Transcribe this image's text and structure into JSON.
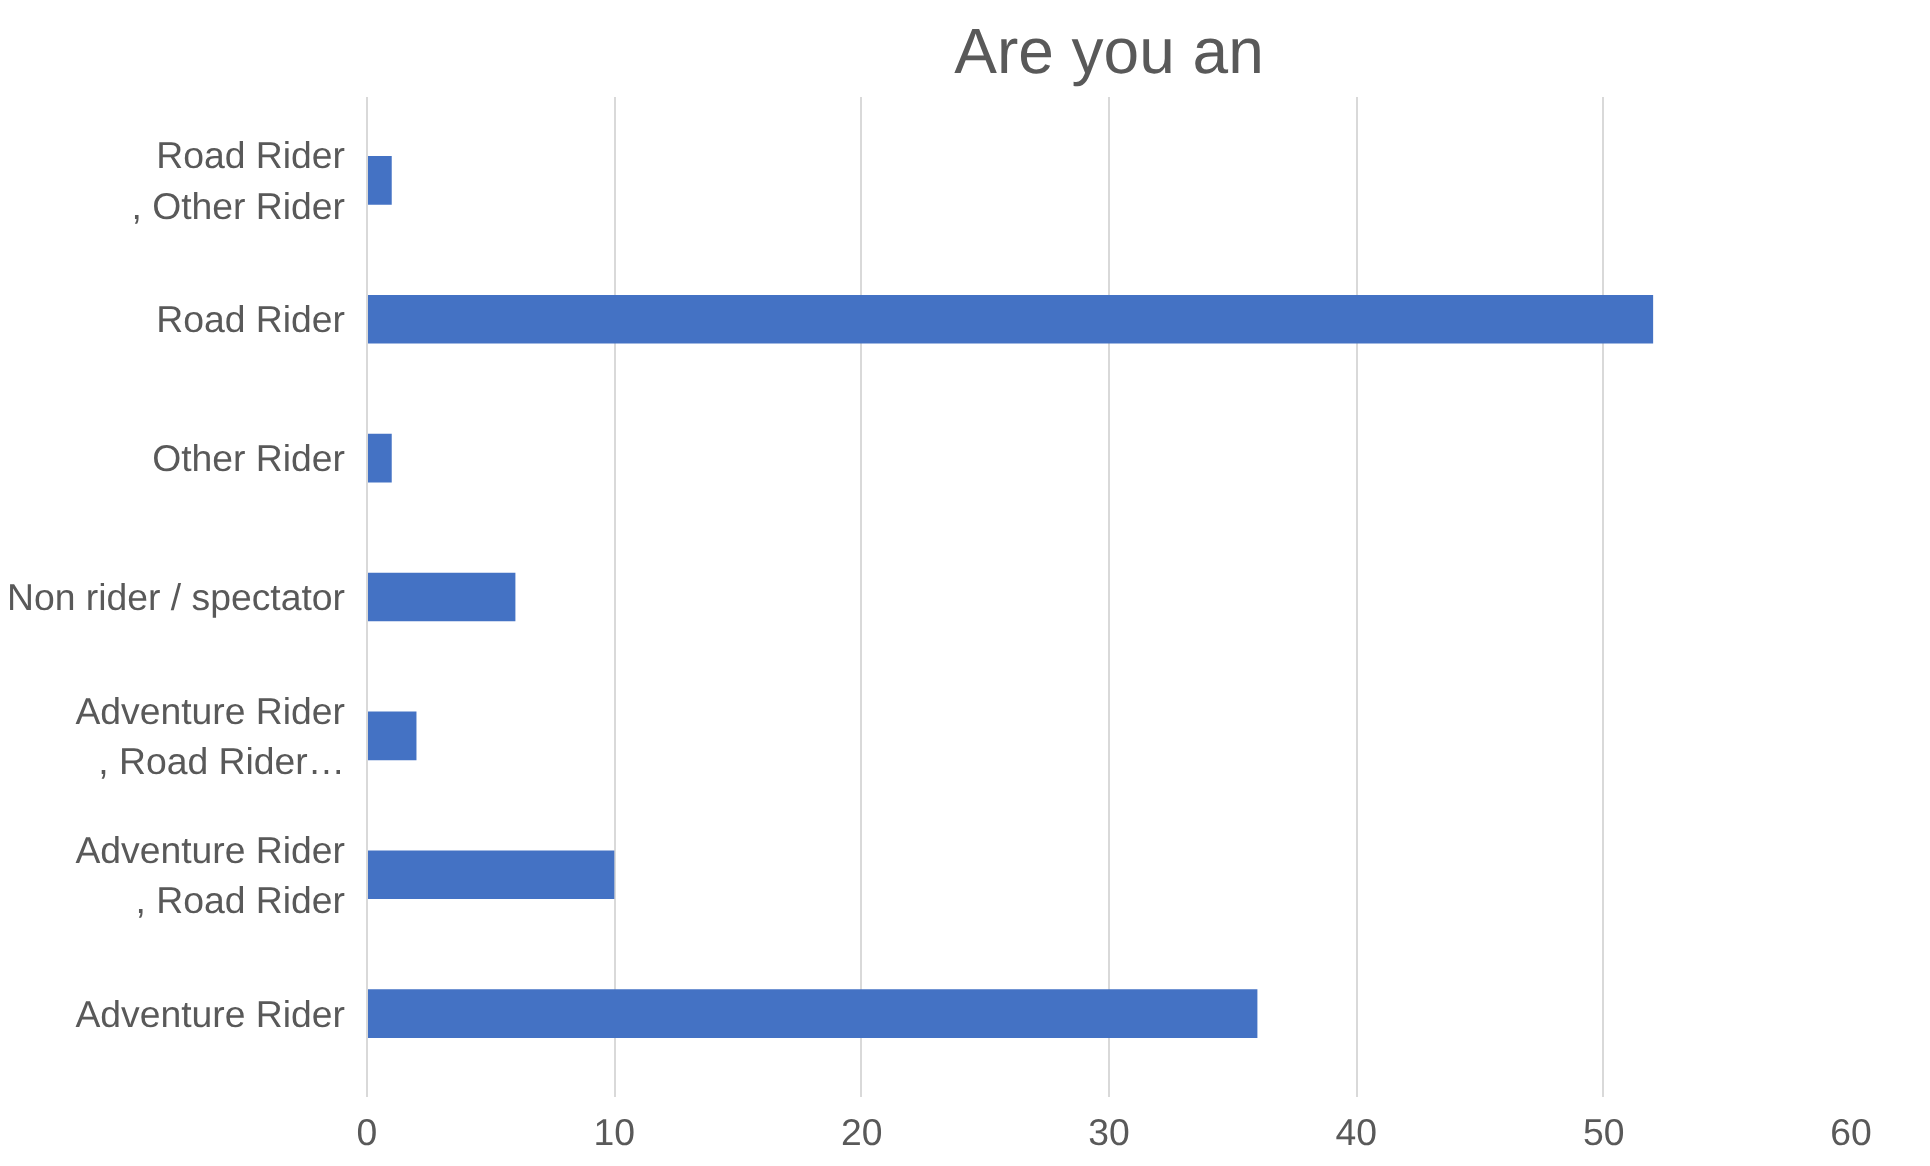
{
  "chart_data": {
    "type": "bar",
    "title": "Are you an",
    "orientation": "horizontal",
    "categories": [
      "Road Rider\n, Other Rider",
      "Road Rider",
      "Other Rider",
      "Non rider / spectator",
      "Adventure Rider\n, Road Rider…",
      "Adventure Rider\n, Road Rider",
      "Adventure Rider"
    ],
    "values": [
      1,
      52,
      1,
      6,
      2,
      10,
      36
    ],
    "color": "#4472c4",
    "xlim": [
      0,
      60
    ],
    "xticks": [
      0,
      10,
      20,
      30,
      40,
      50,
      60
    ],
    "grid": "x"
  }
}
